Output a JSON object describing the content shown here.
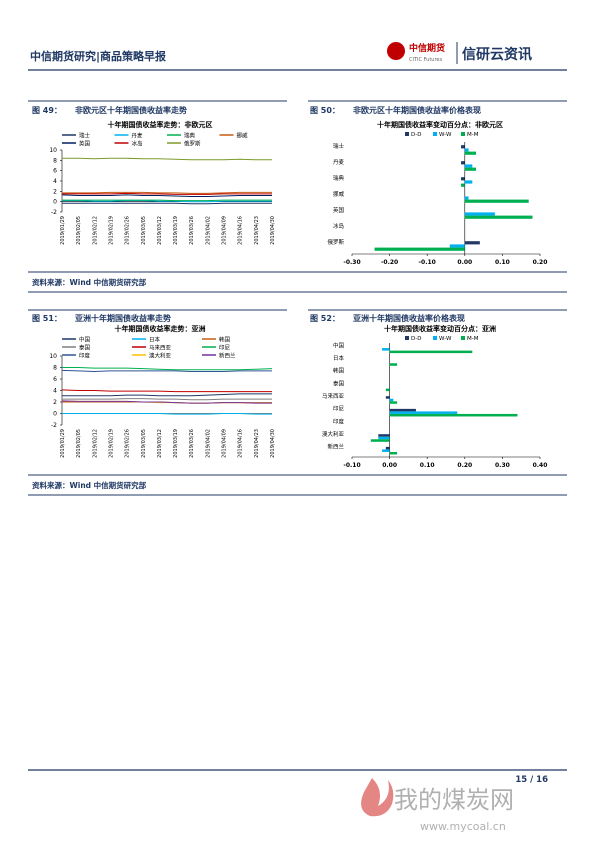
{
  "header": {
    "title": "中信期货研究|商品策略早报",
    "logo_cn": "中信期货",
    "logo_en": "CITIC Futures",
    "brand": "信研云资讯"
  },
  "figures": [
    {
      "label": "图 49：",
      "title": "非欧元区十年期国债收益率走势",
      "source": "资料来源：Wind 中信期货研究部"
    },
    {
      "label": "图 50：",
      "title": "非欧元区十年期国债收益率价格表现"
    },
    {
      "label": "图 51：",
      "title": "亚洲十年期国债收益率走势",
      "source": "资料来源：Wind 中信期货研究部"
    },
    {
      "label": "图 52：",
      "title": "亚洲十年期国债收益率价格表现"
    }
  ],
  "chart_data": [
    {
      "type": "line",
      "title": "十年期国债收益率走势：非欧元区",
      "categories": [
        "2019/01/29",
        "2019/02/05",
        "2019/02/12",
        "2019/02/19",
        "2019/02/26",
        "2019/03/05",
        "2019/03/12",
        "2019/03/19",
        "2019/03/26",
        "2019/04/02",
        "2019/04/09",
        "2019/04/16",
        "2019/04/23",
        "2019/04/30"
      ],
      "ylim": [
        -2,
        10
      ],
      "yticks": [
        -2,
        0,
        2,
        4,
        6,
        8,
        10
      ],
      "series": [
        {
          "name": "瑞士",
          "color": "#1f3864",
          "values": [
            -0.3,
            -0.3,
            -0.3,
            -0.3,
            -0.3,
            -0.3,
            -0.3,
            -0.3,
            -0.4,
            -0.4,
            -0.3,
            -0.3,
            -0.3,
            -0.3
          ]
        },
        {
          "name": "丹麦",
          "color": "#00b0f0",
          "values": [
            0.2,
            0.2,
            0.1,
            0.1,
            0.2,
            0.2,
            0.1,
            0.1,
            0.0,
            0.0,
            0.1,
            0.1,
            0.1,
            0.1
          ]
        },
        {
          "name": "瑞典",
          "color": "#00b050",
          "values": [
            0.3,
            0.3,
            0.3,
            0.3,
            0.3,
            0.3,
            0.3,
            0.2,
            0.2,
            0.2,
            0.3,
            0.3,
            0.3,
            0.3
          ]
        },
        {
          "name": "挪威",
          "color": "#c55a11",
          "values": [
            1.7,
            1.7,
            1.7,
            1.8,
            1.8,
            1.8,
            1.7,
            1.7,
            1.6,
            1.6,
            1.7,
            1.8,
            1.8,
            1.8
          ]
        },
        {
          "name": "英国",
          "color": "#002060",
          "values": [
            1.3,
            1.2,
            1.2,
            1.2,
            1.3,
            1.2,
            1.2,
            1.1,
            1.0,
            1.0,
            1.1,
            1.2,
            1.2,
            1.2
          ]
        },
        {
          "name": "冰岛",
          "color": "#c00000",
          "values": [
            1.5,
            1.5,
            1.5,
            1.5,
            1.6,
            1.5,
            1.5,
            1.4,
            1.4,
            1.4,
            1.5,
            1.5,
            1.5,
            1.5
          ]
        },
        {
          "name": "俄罗斯",
          "color": "#7f9a2a",
          "values": [
            8.4,
            8.4,
            8.3,
            8.4,
            8.4,
            8.3,
            8.3,
            8.2,
            8.1,
            8.1,
            8.1,
            8.2,
            8.1,
            8.1
          ]
        }
      ]
    },
    {
      "type": "hbar",
      "title": "十年期国债收益率变动百分点：非欧元区",
      "categories": [
        "瑞士",
        "丹麦",
        "瑞典",
        "挪威",
        "英国",
        "冰岛",
        "俄罗斯"
      ],
      "xlim": [
        -0.3,
        0.2
      ],
      "xticks": [
        {
          "value": -0.3,
          "label": "-0.30"
        },
        {
          "value": -0.2,
          "label": "-0.20"
        },
        {
          "value": -0.1,
          "label": "-0.10"
        },
        {
          "value": 0,
          "label": "0.00"
        },
        {
          "value": 0.1,
          "label": "0.10"
        },
        {
          "value": 0.2,
          "label": "0.20"
        }
      ],
      "series": [
        {
          "name": "D-D",
          "color": "#1f3864",
          "values": [
            -0.01,
            -0.01,
            -0.01,
            0.0,
            0.0,
            0.0,
            0.04
          ]
        },
        {
          "name": "W-W",
          "color": "#00b0f0",
          "values": [
            0.01,
            0.02,
            0.02,
            0.01,
            0.08,
            0.0,
            -0.04
          ]
        },
        {
          "name": "M-M",
          "color": "#00b050",
          "values": [
            0.03,
            0.03,
            -0.01,
            0.17,
            0.18,
            0.0,
            -0.24
          ]
        }
      ]
    },
    {
      "type": "line",
      "title": "十年期国债收益率走势：亚洲",
      "categories": [
        "2019/01/29",
        "2019/02/05",
        "2019/02/12",
        "2019/02/19",
        "2019/02/26",
        "2019/03/05",
        "2019/03/12",
        "2019/03/19",
        "2019/03/26",
        "2019/04/02",
        "2019/04/09",
        "2019/04/16",
        "2019/04/23",
        "2019/04/30"
      ],
      "ylim": [
        -2,
        10
      ],
      "yticks": [
        -2,
        0,
        2,
        4,
        6,
        8,
        10
      ],
      "series": [
        {
          "name": "中国",
          "color": "#1f3864",
          "values": [
            3.1,
            3.1,
            3.1,
            3.1,
            3.2,
            3.2,
            3.1,
            3.1,
            3.1,
            3.2,
            3.3,
            3.4,
            3.4,
            3.4
          ]
        },
        {
          "name": "日本",
          "color": "#00b0f0",
          "values": [
            0.0,
            0.0,
            0.0,
            0.0,
            0.0,
            0.0,
            0.0,
            -0.1,
            -0.1,
            -0.1,
            0.0,
            0.0,
            -0.1,
            -0.1
          ]
        },
        {
          "name": "韩国",
          "color": "#c55a11",
          "values": [
            2.0,
            2.0,
            2.0,
            2.0,
            2.0,
            2.0,
            2.0,
            1.9,
            1.8,
            1.8,
            1.9,
            1.9,
            1.9,
            1.9
          ]
        },
        {
          "name": "泰国",
          "color": "#7f7f7f",
          "values": [
            2.5,
            2.5,
            2.5,
            2.5,
            2.6,
            2.6,
            2.5,
            2.5,
            2.4,
            2.4,
            2.5,
            2.5,
            2.5,
            2.5
          ]
        },
        {
          "name": "马来西亚",
          "color": "#c00000",
          "values": [
            4.1,
            4.0,
            4.0,
            3.9,
            3.9,
            3.9,
            3.9,
            3.8,
            3.8,
            3.8,
            3.8,
            3.8,
            3.8,
            3.8
          ]
        },
        {
          "name": "印尼",
          "color": "#00b050",
          "values": [
            8.0,
            8.0,
            7.9,
            7.9,
            7.9,
            7.8,
            7.7,
            7.6,
            7.6,
            7.6,
            7.6,
            7.6,
            7.7,
            7.8
          ]
        },
        {
          "name": "印度",
          "color": "#2f5597",
          "values": [
            7.5,
            7.4,
            7.3,
            7.4,
            7.4,
            7.4,
            7.4,
            7.4,
            7.3,
            7.3,
            7.3,
            7.4,
            7.4,
            7.4
          ]
        },
        {
          "name": "澳大利亚",
          "color": "#ffc000",
          "values": [
            2.2,
            2.1,
            2.1,
            2.1,
            2.1,
            2.0,
            1.9,
            1.9,
            1.8,
            1.8,
            1.9,
            1.9,
            1.8,
            1.8
          ]
        },
        {
          "name": "新西兰",
          "color": "#7030a0",
          "values": [
            2.2,
            2.1,
            2.1,
            2.1,
            2.1,
            2.0,
            2.0,
            1.9,
            1.8,
            1.8,
            1.9,
            1.9,
            1.8,
            1.8
          ]
        }
      ]
    },
    {
      "type": "hbar",
      "title": "十年期国债收益率变动百分点：亚洲",
      "categories": [
        "中国",
        "日本",
        "韩国",
        "泰国",
        "马来西亚",
        "印尼",
        "印度",
        "澳大利亚",
        "新西兰"
      ],
      "xlim": [
        -0.1,
        0.4
      ],
      "xticks": [
        {
          "value": -0.1,
          "label": "-0.10"
        },
        {
          "value": 0,
          "label": "0.00"
        },
        {
          "value": 0.1,
          "label": "0.10"
        },
        {
          "value": 0.2,
          "label": "0.20"
        },
        {
          "value": 0.3,
          "label": "0.30"
        },
        {
          "value": 0.4,
          "label": "0.40"
        }
      ],
      "series": [
        {
          "name": "D-D",
          "color": "#1f3864",
          "values": [
            0.0,
            0.0,
            0.0,
            0.0,
            -0.01,
            0.07,
            0.0,
            -0.03,
            -0.01
          ]
        },
        {
          "name": "W-W",
          "color": "#00b0f0",
          "values": [
            -0.02,
            0.0,
            0.0,
            0.0,
            0.01,
            0.18,
            0.0,
            -0.03,
            -0.02
          ]
        },
        {
          "name": "M-M",
          "color": "#00b050",
          "values": [
            0.22,
            0.02,
            0.0,
            -0.01,
            0.02,
            0.34,
            0.0,
            -0.05,
            0.02
          ]
        }
      ]
    }
  ],
  "footer": {
    "page": "15 / 16"
  },
  "watermark": {
    "name": "我的煤炭网",
    "url": "www.mycoal.cn"
  }
}
